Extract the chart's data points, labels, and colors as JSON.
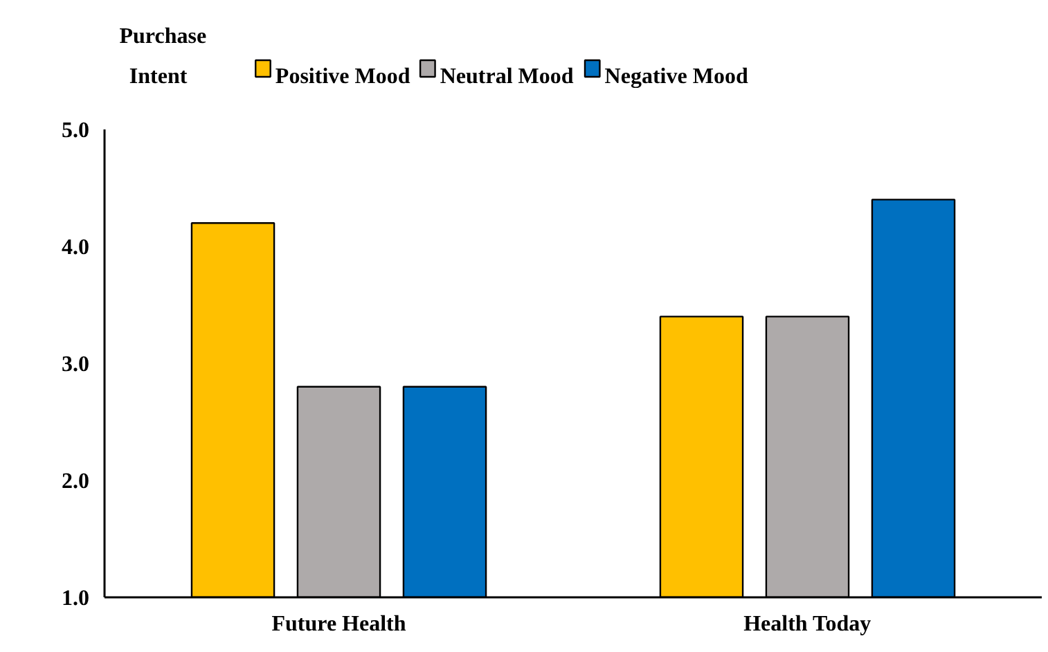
{
  "chart_data": {
    "type": "bar",
    "ylabel": "Purchase Intent",
    "categories": [
      "Future Health",
      "Health Today"
    ],
    "series": [
      {
        "name": "Positive Mood",
        "color": "#ffc000",
        "values": [
          4.2,
          3.4
        ]
      },
      {
        "name": "Neutral Mood",
        "color": "#aeaaaa",
        "values": [
          2.8,
          3.4
        ]
      },
      {
        "name": "Negative Mood",
        "color": "#0070c0",
        "values": [
          2.8,
          4.4
        ]
      }
    ],
    "ylim": [
      1.0,
      5.0
    ],
    "yticks": [
      {
        "value": 1,
        "label": "1.0"
      },
      {
        "value": 2,
        "label": "2.0"
      },
      {
        "value": 3,
        "label": "3.0"
      },
      {
        "value": 4,
        "label": "4.0"
      },
      {
        "value": 5,
        "label": "5.0"
      }
    ],
    "grid": false,
    "legend": "top"
  }
}
